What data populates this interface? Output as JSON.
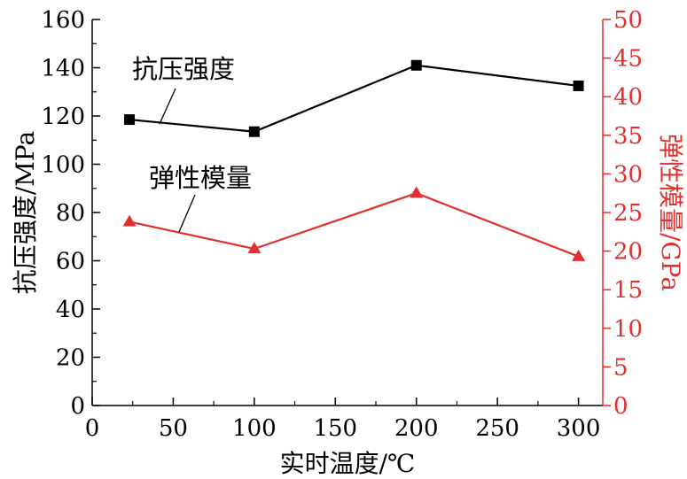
{
  "chart_data": {
    "type": "line",
    "x": [
      23,
      100,
      200,
      300
    ],
    "xlabel": "实时温度/℃",
    "xlim": [
      0,
      315
    ],
    "xticks": [
      "0",
      "50",
      "100",
      "150",
      "200",
      "250",
      "300"
    ],
    "ylabel_left": "抗压强度/MPa",
    "ylim_left": [
      0,
      160
    ],
    "yticks_left": [
      "0",
      "20",
      "40",
      "60",
      "80",
      "100",
      "120",
      "140",
      "160"
    ],
    "ylabel_right": "弹性模量/GPa",
    "ylim_right": [
      0,
      50
    ],
    "yticks_right": [
      "0",
      "5",
      "10",
      "15",
      "20",
      "25",
      "30",
      "35",
      "40",
      "45",
      "50"
    ],
    "series": [
      {
        "name": "抗压强度",
        "axis": "left",
        "marker": "square",
        "color": "#000000",
        "values": [
          118.5,
          113.5,
          141,
          132.5
        ]
      },
      {
        "name": "弹性模量",
        "axis": "right",
        "marker": "triangle",
        "color": "#e03030",
        "values": [
          23.8,
          20.3,
          27.5,
          19.3
        ]
      }
    ],
    "grid": false,
    "legend": "annotations with leader lines"
  }
}
